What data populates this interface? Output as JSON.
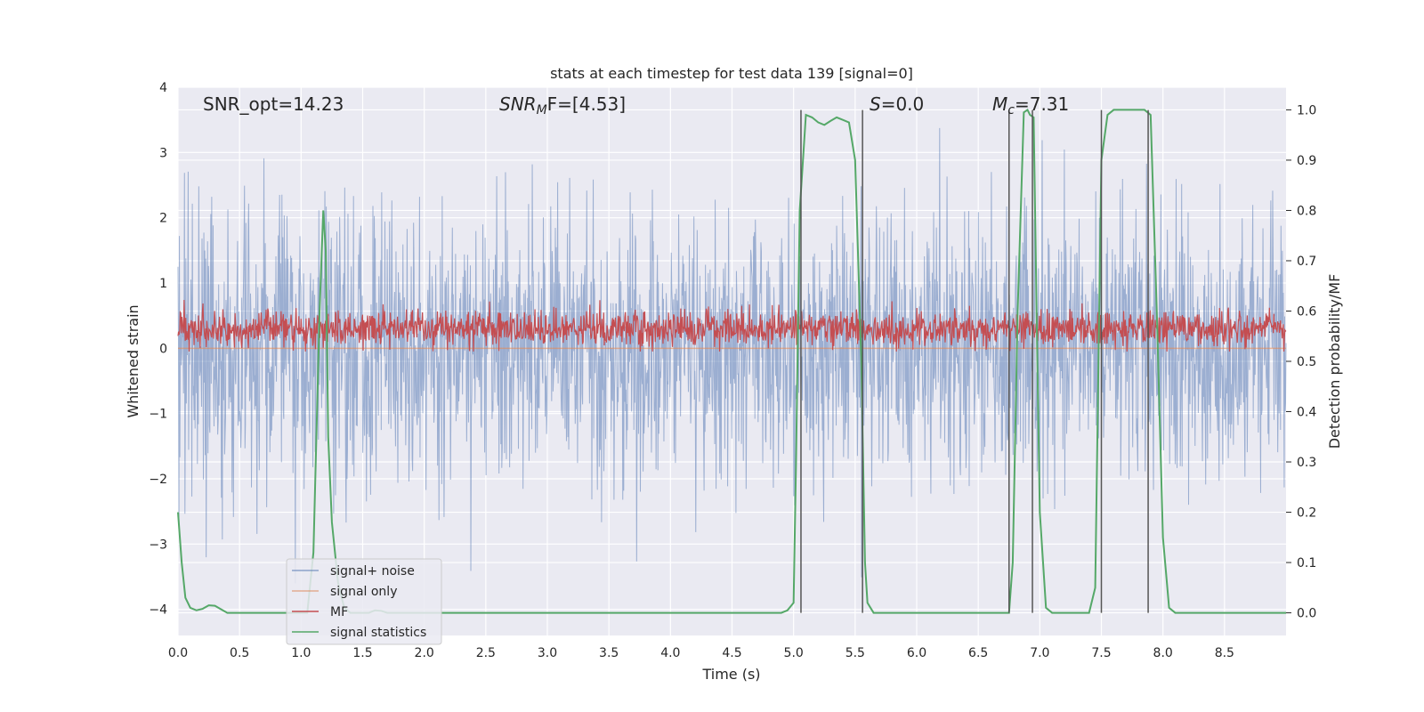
{
  "chart_data": {
    "type": "line",
    "title": "stats at each timestep for test data 139 [signal=0]",
    "xlabel": "Time (s)",
    "ylabel": "Whitened strain",
    "y2label": "Detection probability/MF",
    "xlim": [
      0.0,
      9.0
    ],
    "ylim": [
      -4.4,
      4.0
    ],
    "y2lim": [
      -0.045,
      1.045
    ],
    "x_ticks": [
      "0.0",
      "0.5",
      "1.0",
      "1.5",
      "2.0",
      "2.5",
      "3.0",
      "3.5",
      "4.0",
      "4.5",
      "5.0",
      "5.5",
      "6.0",
      "6.5",
      "7.0",
      "7.5",
      "8.0",
      "8.5"
    ],
    "y_ticks": [
      "−4",
      "−3",
      "−2",
      "−1",
      "0",
      "1",
      "2",
      "3",
      "4"
    ],
    "y2_ticks": [
      "0.0",
      "0.1",
      "0.2",
      "0.3",
      "0.4",
      "0.5",
      "0.6",
      "0.7",
      "0.8",
      "0.9",
      "1.0"
    ],
    "grid": true,
    "legend_position": "lower-left",
    "annotations": {
      "snr_opt": "SNR_opt=14.23",
      "snr_mf_main": "SNR",
      "snr_mf_sub": "M",
      "snr_mf_rest": "F=[4.53]",
      "s_italic": "S",
      "s_rest": "=0.0",
      "mc_italic": "M",
      "mc_sub": "c",
      "mc_rest": "=7.31"
    },
    "series": [
      {
        "name": "signal+ noise",
        "color": "#4c72b0",
        "style": "noise",
        "amplitude_range": [
          -3.6,
          3.6
        ]
      },
      {
        "name": "signal only",
        "color": "#dd8452",
        "values": 0
      },
      {
        "name": "MF",
        "color": "#c44e52",
        "style": "noise",
        "range": [
          -0.05,
          0.85
        ]
      },
      {
        "name": "signal statistics",
        "color": "#55a868",
        "axis": "right",
        "x": [
          0.0,
          0.03,
          0.06,
          0.1,
          0.15,
          0.2,
          0.25,
          0.3,
          0.35,
          0.4,
          0.45,
          0.5,
          0.6,
          0.8,
          1.0,
          1.05,
          1.1,
          1.15,
          1.18,
          1.2,
          1.22,
          1.25,
          1.3,
          1.35,
          1.4,
          1.45,
          1.5,
          1.55,
          1.6,
          1.65,
          1.7,
          2.0,
          3.0,
          4.0,
          4.5,
          4.9,
          4.95,
          5.0,
          5.02,
          5.05,
          5.1,
          5.15,
          5.2,
          5.25,
          5.3,
          5.35,
          5.4,
          5.45,
          5.5,
          5.55,
          5.58,
          5.6,
          5.65,
          5.7,
          5.75,
          5.8,
          6.0,
          6.5,
          6.7,
          6.75,
          6.78,
          6.82,
          6.87,
          6.9,
          6.92,
          6.95,
          6.98,
          7.0,
          7.05,
          7.1,
          7.2,
          7.3,
          7.4,
          7.45,
          7.5,
          7.55,
          7.6,
          7.7,
          7.8,
          7.85,
          7.9,
          7.95,
          8.0,
          8.05,
          8.1,
          8.5,
          9.0
        ],
        "values": [
          0.2,
          0.1,
          0.03,
          0.01,
          0.005,
          0.008,
          0.015,
          0.014,
          0.007,
          0.0,
          0.0,
          0.0,
          0.0,
          0.0,
          0.0,
          0.0,
          0.12,
          0.6,
          0.8,
          0.72,
          0.35,
          0.18,
          0.06,
          0.01,
          0.0,
          0.0,
          0.0,
          0.0,
          0.005,
          0.004,
          0.0,
          0.0,
          0.0,
          0.0,
          0.0,
          0.0,
          0.005,
          0.02,
          0.3,
          0.8,
          0.99,
          0.985,
          0.975,
          0.97,
          0.978,
          0.985,
          0.98,
          0.975,
          0.9,
          0.5,
          0.1,
          0.02,
          0.0,
          0.0,
          0.0,
          0.0,
          0.0,
          0.0,
          0.0,
          0.0,
          0.1,
          0.6,
          0.995,
          1.0,
          0.99,
          0.985,
          0.5,
          0.2,
          0.01,
          0.0,
          0.0,
          0.0,
          0.0,
          0.05,
          0.9,
          0.99,
          1.0,
          1.0,
          1.0,
          1.0,
          0.99,
          0.6,
          0.15,
          0.01,
          0.0,
          0.0,
          0.0
        ]
      },
      {
        "name": "vertical markers",
        "color": "#555555",
        "x": [
          5.06,
          5.56,
          6.75,
          6.94,
          7.5,
          7.88
        ]
      }
    ]
  }
}
